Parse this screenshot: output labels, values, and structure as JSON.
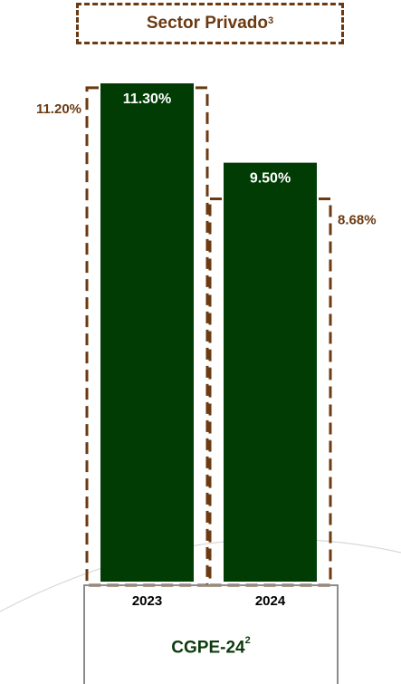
{
  "title": {
    "text": "Sector Privado",
    "superscript": "3"
  },
  "footer": {
    "text": "CGPE-24",
    "superscript": "2"
  },
  "colors": {
    "bar": "#003c04",
    "reference": "#6b3a12",
    "label_text": "#ffffff",
    "tick_text": "#000000"
  },
  "chart_data": {
    "type": "bar",
    "categories": [
      "2023",
      "2024"
    ],
    "series": [
      {
        "values": [
          11.3,
          9.5
        ],
        "labels": [
          "11.30%",
          "9.50%"
        ]
      }
    ],
    "reference": {
      "values": [
        11.2,
        8.68
      ],
      "labels": [
        "11.20%",
        "8.68%"
      ],
      "style": "dashed-outline"
    },
    "ylim": [
      0,
      11.3
    ],
    "grid": false,
    "legend": "none"
  }
}
